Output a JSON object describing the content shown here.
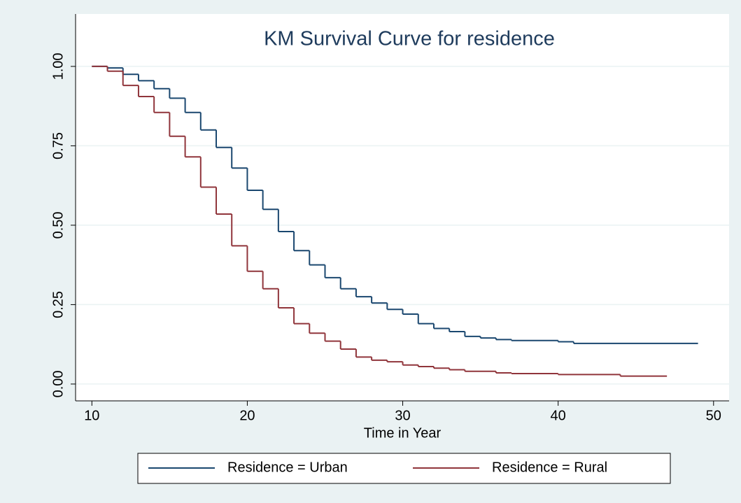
{
  "chart_data": {
    "type": "step",
    "title": "KM Survival Curve for residence",
    "xlabel": "Time in Year",
    "xlim": [
      8.95,
      51
    ],
    "ylim": [
      -0.053,
      1.165
    ],
    "xticks": [
      10,
      20,
      30,
      40,
      50
    ],
    "yticks": [
      {
        "value": 0,
        "label": "0.00"
      },
      {
        "value": 0.25,
        "label": "0.25"
      },
      {
        "value": 0.5,
        "label": "0.50"
      },
      {
        "value": 0.75,
        "label": "0.75"
      },
      {
        "value": 1,
        "label": "1.00"
      }
    ],
    "grid": true,
    "series": [
      {
        "name": "Residence = Urban",
        "color": "#1a476f",
        "x": [
          10,
          11,
          12,
          13,
          14,
          15,
          16,
          17,
          18,
          19,
          20,
          21,
          22,
          23,
          24,
          25,
          26,
          27,
          28,
          29,
          30,
          31,
          32,
          33,
          34,
          35,
          36,
          37,
          40,
          41,
          49
        ],
        "values": [
          1.0,
          0.995,
          0.975,
          0.955,
          0.93,
          0.9,
          0.855,
          0.8,
          0.745,
          0.68,
          0.61,
          0.55,
          0.48,
          0.42,
          0.375,
          0.335,
          0.3,
          0.275,
          0.255,
          0.235,
          0.22,
          0.19,
          0.175,
          0.165,
          0.15,
          0.145,
          0.14,
          0.137,
          0.133,
          0.128,
          0.128
        ]
      },
      {
        "name": "Residence = Rural",
        "color": "#90353b",
        "x": [
          10,
          11,
          12,
          13,
          14,
          15,
          16,
          17,
          18,
          19,
          20,
          21,
          22,
          23,
          24,
          25,
          26,
          27,
          28,
          29,
          30,
          31,
          32,
          33,
          34,
          36,
          37,
          40,
          44,
          47
        ],
        "values": [
          1.0,
          0.985,
          0.94,
          0.905,
          0.855,
          0.78,
          0.715,
          0.62,
          0.535,
          0.435,
          0.355,
          0.3,
          0.24,
          0.19,
          0.16,
          0.135,
          0.11,
          0.085,
          0.075,
          0.07,
          0.06,
          0.055,
          0.05,
          0.045,
          0.04,
          0.035,
          0.033,
          0.03,
          0.025,
          0.025
        ]
      }
    ]
  }
}
